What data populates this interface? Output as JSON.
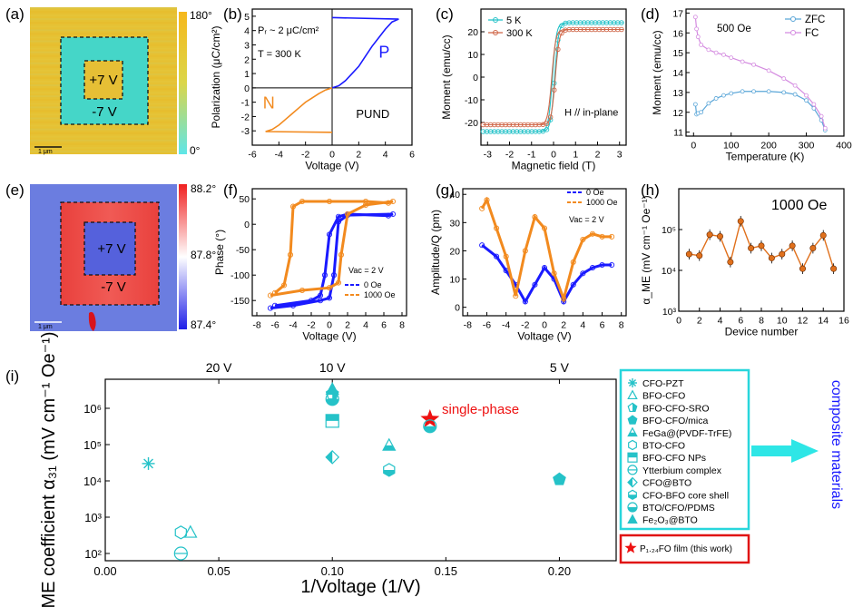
{
  "panel_labels": [
    "(a)",
    "(b)",
    "(c)",
    "(d)",
    "(e)",
    "(f)",
    "(g)",
    "(h)",
    "(i)"
  ],
  "colors": {
    "teal": "#25c2c8",
    "orange": "#f28a1e",
    "blue": "#1a1aff",
    "zfc": "#5aa6d8",
    "fc": "#d48be0",
    "h_line": "#e0701c",
    "star": "#ee1111",
    "box_teal": "#28d6dc",
    "box_red": "#e01414",
    "arrow": "#2ee6e6",
    "phase_bg": "#e6c133",
    "phase_square": "#45d6c8",
    "amp_bg": "#6b7de0",
    "amp_frame": "#ea4c45",
    "amp_center": "#5561dc"
  },
  "maps": [
    {
      "label": "(a)",
      "inner": "+7 V",
      "outer": "-7 V",
      "scale": "1 μm",
      "cbar_max": "180°",
      "cbar_min": "0°",
      "cbar_colors": [
        "#f6b81c",
        "#dbd64a",
        "#5ee6e8"
      ]
    },
    {
      "label": "(e)",
      "inner": "+7 V",
      "outer": "-7 V",
      "scale": "1 μm",
      "cbar_max": "88.2°",
      "cbar_mid": "87.8°",
      "cbar_min": "87.4°",
      "cbar_colors": [
        "#f02020",
        "#ffffff",
        "#2020e8"
      ]
    }
  ],
  "chart_data": [
    {
      "panel": "(b)",
      "type": "line",
      "xlabel": "Voltage (V)",
      "ylabel": "Polarization (μC/cm²)",
      "xlim": [
        -6,
        6
      ],
      "ylim": [
        -4,
        5.5
      ],
      "xticks": [
        -6,
        -4,
        -2,
        0,
        2,
        4,
        6
      ],
      "yticks": [
        -3,
        -2,
        -1,
        0,
        1,
        2,
        3,
        4,
        5
      ],
      "annotations": [
        "P",
        "N",
        "PUND"
      ],
      "series": [
        {
          "name": "P",
          "color": "#1a1aff",
          "x": [
            0,
            0.5,
            1,
            1.5,
            2,
            2.5,
            3,
            3.5,
            4,
            4.5,
            5,
            0.2,
            0
          ],
          "y": [
            0,
            0.15,
            0.5,
            1.0,
            1.5,
            2.2,
            2.9,
            3.5,
            4.1,
            4.6,
            4.8,
            4.9,
            4.9
          ]
        },
        {
          "name": "N",
          "color": "#f28a1e",
          "x": [
            0,
            -0.5,
            -1,
            -1.5,
            -2,
            -2.5,
            -3,
            -3.5,
            -4,
            -4.5,
            -5,
            -0.2,
            0
          ],
          "y": [
            0,
            -0.15,
            -0.4,
            -0.7,
            -1.0,
            -1.4,
            -1.8,
            -2.2,
            -2.6,
            -2.9,
            -3.05,
            -3.1,
            -3.1
          ]
        }
      ]
    },
    {
      "panel": "(c)",
      "type": "line",
      "xlabel": "Magnetic field (T)",
      "ylabel": "Moment (emu/cc)",
      "xlim": [
        -3.3,
        3.3
      ],
      "ylim": [
        -30,
        30
      ],
      "xticks": [
        -3,
        -2,
        -1,
        0,
        1,
        2,
        3
      ],
      "yticks": [
        -20,
        -10,
        0,
        10,
        20
      ],
      "annotations": [
        "H // in-plane"
      ],
      "series": [
        {
          "name": "5 K",
          "color": "#25c2c8",
          "saturation": 24
        },
        {
          "name": "300 K",
          "color": "#d0684a",
          "saturation": 21
        }
      ]
    },
    {
      "panel": "(d)",
      "type": "line",
      "xlabel": "Temperature (K)",
      "ylabel": "Moment (emu/cc)",
      "xlim": [
        -20,
        400
      ],
      "ylim": [
        10.8,
        17.2
      ],
      "xticks": [
        0,
        100,
        200,
        300,
        400
      ],
      "yticks": [
        11,
        12,
        13,
        14,
        15,
        16,
        17
      ],
      "annotations": [
        "500 Oe"
      ],
      "series": [
        {
          "name": "ZFC",
          "color": "#5aa6d8",
          "x": [
            5,
            8,
            12,
            20,
            40,
            60,
            80,
            100,
            130,
            160,
            200,
            240,
            270,
            300,
            320,
            340,
            350
          ],
          "y": [
            12.4,
            11.9,
            11.95,
            12.0,
            12.45,
            12.7,
            12.85,
            12.95,
            13.05,
            13.05,
            13.05,
            13.0,
            12.9,
            12.6,
            12.2,
            11.6,
            11.1
          ]
        },
        {
          "name": "FC",
          "color": "#d48be0",
          "x": [
            5,
            8,
            12,
            20,
            40,
            60,
            80,
            100,
            130,
            160,
            200,
            240,
            270,
            300,
            320,
            340,
            350
          ],
          "y": [
            16.8,
            16.2,
            15.8,
            15.4,
            15.15,
            15.0,
            14.9,
            14.75,
            14.55,
            14.4,
            14.1,
            13.7,
            13.35,
            12.85,
            12.4,
            11.8,
            11.2
          ]
        }
      ]
    },
    {
      "panel": "(f)",
      "type": "line",
      "xlabel": "Voltage (V)",
      "ylabel": "Phase (°)",
      "xlim": [
        -8.5,
        8.5
      ],
      "ylim": [
        -180,
        70
      ],
      "xticks": [
        -8,
        -6,
        -4,
        -2,
        0,
        2,
        4,
        6,
        8
      ],
      "yticks": [
        -150,
        -100,
        -50,
        0,
        50
      ],
      "annotations": [
        "Vac = 2 V"
      ],
      "series": [
        {
          "name": "0 Oe",
          "color": "#1a1aff",
          "x": [
            -6,
            -2,
            -1,
            -0.5,
            0,
            1,
            2,
            6.5,
            7,
            2,
            1,
            0.5,
            0,
            -1,
            -4,
            -6.5
          ],
          "y": [
            -160,
            -150,
            -140,
            -100,
            -20,
            15,
            20,
            17,
            20,
            18,
            5,
            -100,
            -145,
            -150,
            -160,
            -165
          ]
        },
        {
          "name": "1000 Oe",
          "color": "#f28a1e",
          "x": [
            -6,
            -5,
            -4.3,
            -4,
            -3,
            0,
            4,
            6.5,
            7,
            4,
            2,
            1.3,
            1,
            0,
            -3,
            -6.5
          ],
          "y": [
            -135,
            -120,
            -60,
            35,
            45,
            45,
            45,
            42,
            45,
            38,
            20,
            -60,
            -115,
            -125,
            -130,
            -140
          ]
        }
      ]
    },
    {
      "panel": "(g)",
      "type": "line",
      "xlabel": "Voltage (V)",
      "ylabel": "Amplitude/Q (pm)",
      "xlim": [
        -8.5,
        8.5
      ],
      "ylim": [
        -3,
        42
      ],
      "xticks": [
        -8,
        -6,
        -4,
        -2,
        0,
        2,
        4,
        6,
        8
      ],
      "yticks": [
        0,
        10,
        20,
        30,
        40
      ],
      "annotations": [
        "Vac = 2 V"
      ],
      "series": [
        {
          "name": "0 Oe",
          "color": "#1a1aff",
          "x": [
            -6.5,
            -5,
            -4,
            -3,
            -2,
            -1,
            0,
            1,
            2,
            3,
            4,
            5,
            6,
            7
          ],
          "y": [
            22,
            18,
            13,
            8,
            2,
            8,
            14,
            10,
            2,
            8,
            12,
            14,
            15,
            15
          ]
        },
        {
          "name": "1000 Oe",
          "color": "#f28a1e",
          "x": [
            -6.5,
            -6,
            -5,
            -4,
            -3,
            -2,
            -1,
            0,
            1,
            2,
            3,
            4,
            5,
            6,
            7
          ],
          "y": [
            35,
            38,
            28,
            18,
            4,
            20,
            32,
            28,
            12,
            3,
            16,
            24,
            26,
            25,
            25
          ]
        }
      ]
    },
    {
      "panel": "(h)",
      "type": "line",
      "xlabel": "Device number",
      "ylabel": "α_ME (mV cm⁻¹ Oe⁻¹)",
      "xlim": [
        0,
        16
      ],
      "ylim_log10": [
        3,
        6
      ],
      "xticks": [
        0,
        2,
        4,
        6,
        8,
        10,
        12,
        14,
        16
      ],
      "ytick_labels": [
        "10³",
        "10⁴",
        "10⁵"
      ],
      "annotations": [
        "1000 Oe"
      ],
      "series": [
        {
          "name": "α_ME",
          "color": "#e0701c",
          "x": [
            1,
            2,
            3,
            4,
            5,
            6,
            7,
            8,
            9,
            10,
            11,
            12,
            13,
            14,
            15
          ],
          "y": [
            25000,
            23000,
            75000,
            68000,
            16000,
            160000,
            35000,
            40000,
            20000,
            25000,
            40000,
            11000,
            35000,
            72000,
            11000
          ]
        }
      ]
    },
    {
      "panel": "(i)",
      "type": "scatter",
      "xlabel": "1/Voltage (1/V)",
      "ylabel": "ME coefficient α₃₁ (mV cm⁻¹ Oe⁻¹)",
      "top_axis_labels": [
        "20 V",
        "10 V",
        "5 V"
      ],
      "xlim": [
        0,
        0.225
      ],
      "ylim_log10": [
        1.8,
        6.8
      ],
      "xticks": [
        0.0,
        0.05,
        0.1,
        0.15,
        0.2
      ],
      "ytick_labels": [
        "10²",
        "10³",
        "10⁴",
        "10⁵",
        "10⁶"
      ],
      "annotations": [
        "single-phase",
        "composite materials"
      ],
      "points": [
        {
          "name": "CFO-PZT",
          "marker": "asterisk",
          "x": 0.019,
          "y": 30000
        },
        {
          "name": "BFO-CFO",
          "marker": "triangle",
          "x": 0.0375,
          "y": 380
        },
        {
          "name": "BFO-CFO-SRO",
          "marker": "pent-half",
          "x": 0.1,
          "y": 2500000
        },
        {
          "name": "BFO-CFO/mica",
          "marker": "pentagon-solid",
          "x": 0.2,
          "y": 11000
        },
        {
          "name": "FeGa@(PVDF-TrFE)",
          "marker": "triangle-half",
          "x": 0.125,
          "y": 95000
        },
        {
          "name": "BTO-CFO",
          "marker": "hexagon",
          "x": 0.0333,
          "y": 380
        },
        {
          "name": "BFO-CFO NPs",
          "marker": "square-half",
          "x": 0.1,
          "y": 450000
        },
        {
          "name": "Ytterbium complex",
          "marker": "circle-bar",
          "x": 0.0333,
          "y": 100
        },
        {
          "name": "CFO@BTO",
          "marker": "diamond-half",
          "x": 0.1,
          "y": 45000
        },
        {
          "name": "CFO-BFO core shell",
          "marker": "hexagon-half",
          "x": 0.125,
          "y": 20000
        },
        {
          "name": "BTO/CFO/PDMS",
          "marker": "circle-half",
          "x": 0.1,
          "y": 1800000
        },
        {
          "name": "Fe₂O₃@BTO",
          "marker": "triangle-solid",
          "x": 0.1,
          "y": 3300000
        },
        {
          "name": "P₁.₂₄FO film (this work)",
          "marker": "star",
          "x": 0.143,
          "y": 500000
        }
      ],
      "extra_points": [
        {
          "marker": "circle-half",
          "x": 0.143,
          "y": 320000
        }
      ]
    }
  ]
}
